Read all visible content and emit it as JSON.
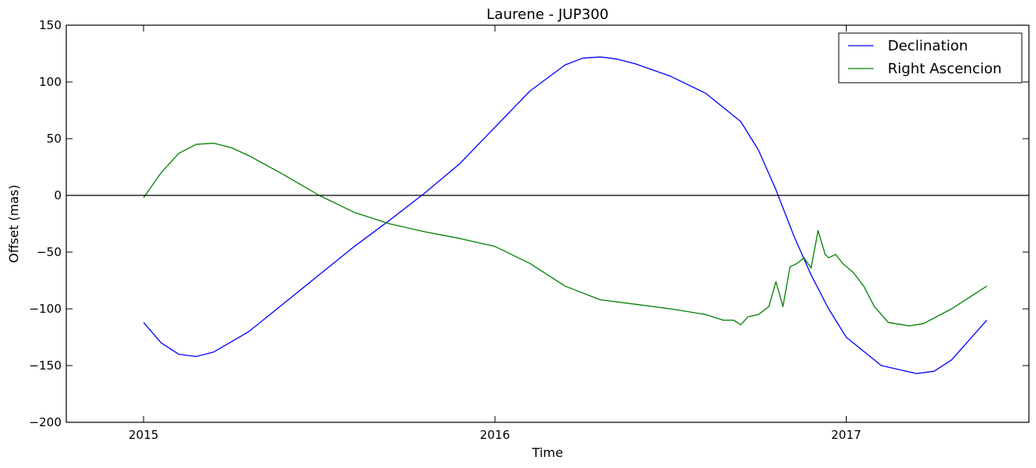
{
  "chart_data": {
    "type": "line",
    "title": "Laurene - JUP300",
    "xlabel": "Time",
    "ylabel": "Offset (mas)",
    "xlim": [
      2014.78,
      2017.52
    ],
    "ylim": [
      -200,
      150
    ],
    "x_ticks": [
      2015,
      2016,
      2017
    ],
    "x_tick_labels": [
      "2015",
      "2016",
      "2017"
    ],
    "y_ticks": [
      150,
      100,
      50,
      0,
      -50,
      -100,
      -150,
      -200
    ],
    "y_tick_labels": [
      "150",
      "100",
      "50",
      "0",
      "−50",
      "−100",
      "−150",
      "−200"
    ],
    "grid": false,
    "zero_line": 0,
    "legend": {
      "position": "top-right"
    },
    "series": [
      {
        "name": "Declination",
        "color": "#0000ff",
        "x": [
          2015.0,
          2015.05,
          2015.1,
          2015.15,
          2015.2,
          2015.3,
          2015.4,
          2015.5,
          2015.6,
          2015.7,
          2015.8,
          2015.9,
          2016.0,
          2016.1,
          2016.2,
          2016.25,
          2016.3,
          2016.35,
          2016.4,
          2016.5,
          2016.6,
          2016.7,
          2016.75,
          2016.8,
          2016.85,
          2016.9,
          2016.95,
          2017.0,
          2017.1,
          2017.2,
          2017.25,
          2017.3,
          2017.4
        ],
        "y": [
          -112,
          -130,
          -140,
          -142,
          -138,
          -120,
          -95,
          -70,
          -45,
          -22,
          2,
          28,
          60,
          92,
          115,
          121,
          122,
          120,
          116,
          105,
          90,
          65,
          40,
          5,
          -35,
          -70,
          -100,
          -125,
          -150,
          -157,
          -155,
          -145,
          -110
        ]
      },
      {
        "name": "Right Ascencion",
        "color": "#008000",
        "x": [
          2015.0,
          2015.05,
          2015.1,
          2015.15,
          2015.2,
          2015.25,
          2015.3,
          2015.4,
          2015.5,
          2015.6,
          2015.7,
          2015.8,
          2015.9,
          2016.0,
          2016.1,
          2016.2,
          2016.3,
          2016.4,
          2016.5,
          2016.6,
          2016.65,
          2016.68,
          2016.7,
          2016.72,
          2016.75,
          2016.78,
          2016.8,
          2016.82,
          2016.84,
          2016.86,
          2016.88,
          2016.9,
          2016.92,
          2016.94,
          2016.95,
          2016.97,
          2016.99,
          2017.02,
          2017.05,
          2017.08,
          2017.12,
          2017.18,
          2017.22,
          2017.3,
          2017.4
        ],
        "y": [
          -2,
          20,
          37,
          45,
          46,
          42,
          35,
          18,
          0,
          -15,
          -25,
          -32,
          -38,
          -45,
          -60,
          -80,
          -92,
          -96,
          -100,
          -105,
          -110,
          -110,
          -114,
          -107,
          -105,
          -98,
          -76,
          -98,
          -63,
          -60,
          -55,
          -64,
          -31,
          -52,
          -55,
          -52,
          -60,
          -68,
          -80,
          -98,
          -112,
          -115,
          -113,
          -100,
          -80
        ]
      }
    ]
  }
}
